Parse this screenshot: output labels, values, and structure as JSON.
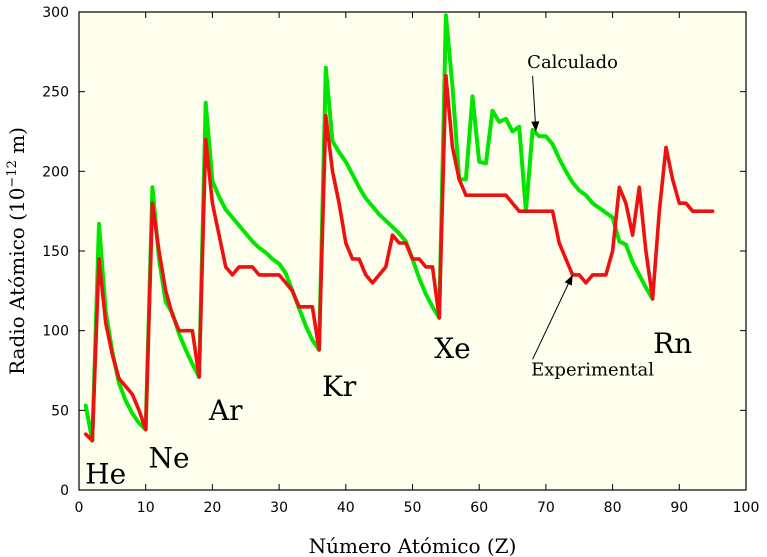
{
  "chart_data": {
    "type": "line",
    "xlabel": "Número Atómico (Z)",
    "ylabel_prefix": "Radio Atómico (10",
    "ylabel_exp": "−12",
    "ylabel_suffix": " m)",
    "xlim": [
      0,
      100
    ],
    "ylim": [
      0,
      300
    ],
    "xticks": [
      0,
      10,
      20,
      30,
      40,
      50,
      60,
      70,
      80,
      90,
      100
    ],
    "yticks": [
      0,
      50,
      100,
      150,
      200,
      250,
      300
    ],
    "background": "#ffffee",
    "series": [
      {
        "name": "Calculado",
        "color": "#00e600",
        "x": [
          1,
          2,
          3,
          4,
          5,
          6,
          7,
          8,
          9,
          10,
          11,
          12,
          13,
          14,
          15,
          16,
          17,
          18,
          19,
          20,
          21,
          22,
          23,
          24,
          25,
          26,
          27,
          28,
          29,
          30,
          31,
          32,
          33,
          34,
          35,
          36,
          37,
          38,
          39,
          40,
          41,
          42,
          43,
          44,
          45,
          46,
          47,
          48,
          49,
          50,
          51,
          52,
          53,
          54,
          55,
          56,
          57,
          58,
          59,
          60,
          61,
          62,
          63,
          64,
          65,
          66,
          67,
          68,
          69,
          70,
          71,
          72,
          73,
          74,
          75,
          76,
          77,
          78,
          79,
          80,
          81,
          82,
          83,
          84,
          85,
          86
        ],
        "y": [
          53,
          31,
          167,
          112,
          87,
          67,
          56,
          48,
          42,
          38,
          190,
          145,
          118,
          111,
          98,
          88,
          79,
          71,
          243,
          194,
          184,
          176,
          171,
          166,
          161,
          156,
          152,
          149,
          145,
          142,
          136,
          125,
          114,
          103,
          94,
          88,
          265,
          219,
          212,
          206,
          198,
          190,
          183,
          178,
          173,
          169,
          165,
          161,
          156,
          145,
          133,
          123,
          115,
          108,
          298,
          253,
          195,
          195,
          247,
          206,
          205,
          238,
          231,
          233,
          225,
          228,
          175,
          226,
          222,
          222,
          217,
          208,
          200,
          193,
          188,
          185,
          180,
          177,
          174,
          171,
          156,
          154,
          143,
          135,
          127,
          120
        ]
      },
      {
        "name": "Experimental",
        "color": "#ee1111",
        "x": [
          1,
          2,
          3,
          4,
          5,
          6,
          7,
          8,
          9,
          10,
          11,
          12,
          13,
          14,
          15,
          16,
          17,
          18,
          19,
          20,
          21,
          22,
          23,
          24,
          25,
          26,
          27,
          28,
          29,
          30,
          31,
          32,
          33,
          34,
          35,
          36,
          37,
          38,
          39,
          40,
          41,
          42,
          43,
          44,
          45,
          46,
          47,
          48,
          49,
          50,
          51,
          52,
          53,
          54,
          55,
          56,
          57,
          58,
          59,
          60,
          61,
          62,
          63,
          64,
          65,
          66,
          67,
          68,
          69,
          70,
          71,
          72,
          73,
          74,
          75,
          76,
          77,
          78,
          79,
          80,
          81,
          82,
          83,
          84,
          85,
          86,
          87,
          88,
          89,
          90,
          91,
          92,
          93,
          94,
          95
        ],
        "y": [
          35,
          31,
          145,
          105,
          85,
          70,
          65,
          60,
          50,
          38,
          180,
          150,
          125,
          110,
          100,
          100,
          100,
          71,
          220,
          180,
          160,
          140,
          135,
          140,
          140,
          140,
          135,
          135,
          135,
          135,
          130,
          125,
          115,
          115,
          115,
          88,
          235,
          200,
          180,
          155,
          145,
          145,
          135,
          130,
          135,
          140,
          160,
          155,
          155,
          145,
          145,
          140,
          140,
          108,
          260,
          215,
          195,
          185,
          185,
          185,
          185,
          185,
          185,
          185,
          180,
          175,
          175,
          175,
          175,
          175,
          175,
          155,
          145,
          135,
          135,
          130,
          135,
          135,
          135,
          150,
          190,
          180,
          160,
          190,
          150,
          120,
          175,
          215,
          195,
          180,
          180,
          175,
          175,
          175,
          175
        ]
      }
    ],
    "annotations": [
      {
        "text": "Calculado",
        "x": 74,
        "y": 265,
        "arrow_to": [
          68.5,
          225
        ]
      },
      {
        "text": "Experimental",
        "x": 77,
        "y": 72,
        "arrow_to": [
          74,
          135
        ]
      }
    ],
    "element_labels": [
      {
        "text": "He",
        "x": 4,
        "y": 4
      },
      {
        "text": "Ne",
        "x": 13.5,
        "y": 14
      },
      {
        "text": "Ar",
        "x": 22,
        "y": 44
      },
      {
        "text": "Kr",
        "x": 39,
        "y": 59
      },
      {
        "text": "Xe",
        "x": 56,
        "y": 83
      },
      {
        "text": "Rn",
        "x": 89,
        "y": 86
      }
    ]
  }
}
